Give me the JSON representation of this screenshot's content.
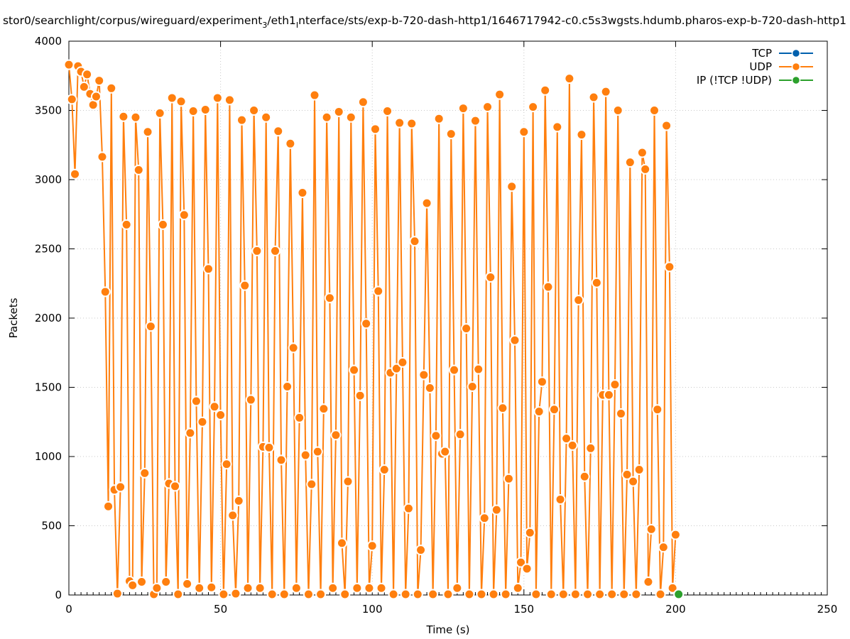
{
  "chart_data": {
    "type": "line",
    "title_parts": [
      "stor0/searchlight/corpus/wireguard/experiment",
      "3",
      "/eth1",
      "I",
      "nterface/sts/exp-b-720-dash-http1/1646717942-c0.c5s3wgsts.hdumb.pharos-exp-b-720-dash-http1"
    ],
    "xlabel": "Time (s)",
    "ylabel": "Packets",
    "xlim": [
      0,
      250
    ],
    "ylim": [
      0,
      4000
    ],
    "x_ticks": [
      0,
      50,
      100,
      150,
      200,
      250
    ],
    "y_ticks": [
      0,
      500,
      1000,
      1500,
      2000,
      2500,
      3000,
      3500,
      4000
    ],
    "grid": true,
    "legend_position": "top-right",
    "series": [
      {
        "name": "TCP",
        "color": "#0060ad",
        "x": [],
        "values": []
      },
      {
        "name": "UDP",
        "color": "#ff7f0e",
        "x": [
          0,
          1,
          2,
          3,
          4,
          5,
          6,
          7,
          8,
          9,
          10,
          11,
          12,
          13,
          14,
          15,
          16,
          17,
          18,
          19,
          20,
          21,
          22,
          23,
          24,
          25,
          26,
          27,
          28,
          29,
          30,
          31,
          32,
          33,
          34,
          35,
          36,
          37,
          38,
          39,
          40,
          41,
          42,
          43,
          44,
          45,
          46,
          47,
          48,
          49,
          50,
          51,
          52,
          53,
          54,
          55,
          56,
          57,
          58,
          59,
          60,
          61,
          62,
          63,
          64,
          65,
          66,
          67,
          68,
          69,
          70,
          71,
          72,
          73,
          74,
          75,
          76,
          77,
          78,
          79,
          80,
          81,
          82,
          83,
          84,
          85,
          86,
          87,
          88,
          89,
          90,
          91,
          92,
          93,
          94,
          95,
          96,
          97,
          98,
          99,
          100,
          101,
          102,
          103,
          104,
          105,
          106,
          107,
          108,
          109,
          110,
          111,
          112,
          113,
          114,
          115,
          116,
          117,
          118,
          119,
          120,
          121,
          122,
          123,
          124,
          125,
          126,
          127,
          128,
          129,
          130,
          131,
          132,
          133,
          134,
          135,
          136,
          137,
          138,
          139,
          140,
          141,
          142,
          143,
          144,
          145,
          146,
          147,
          148,
          149,
          150,
          151,
          152,
          153,
          154,
          155,
          156,
          157,
          158,
          159,
          160,
          161,
          162,
          163,
          164,
          165,
          166,
          167,
          168,
          169,
          170,
          171,
          172,
          173,
          174,
          175,
          176,
          177,
          178,
          179,
          180,
          181,
          182,
          183,
          184,
          185,
          186,
          187,
          188,
          189,
          190,
          191,
          192,
          193,
          194,
          195,
          196,
          197,
          198,
          199,
          200
        ],
        "values": [
          3830,
          3580,
          3040,
          3820,
          3780,
          3670,
          3760,
          3620,
          3540,
          3600,
          3715,
          3165,
          2190,
          640,
          3660,
          760,
          10,
          780,
          3455,
          2675,
          100,
          70,
          3450,
          3070,
          95,
          880,
          3345,
          1940,
          5,
          50,
          3480,
          2675,
          95,
          805,
          3590,
          785,
          5,
          3565,
          2745,
          80,
          1170,
          3495,
          1400,
          50,
          1250,
          3505,
          2355,
          55,
          1360,
          3590,
          1300,
          5,
          945,
          3575,
          575,
          10,
          680,
          3430,
          2235,
          50,
          1410,
          3500,
          2485,
          50,
          1070,
          3450,
          1065,
          5,
          2485,
          3350,
          975,
          5,
          1505,
          3260,
          1785,
          50,
          1280,
          2905,
          1010,
          5,
          800,
          3610,
          1035,
          5,
          1345,
          3450,
          2145,
          50,
          1155,
          3490,
          375,
          5,
          820,
          3450,
          1625,
          50,
          1440,
          3560,
          1960,
          50,
          355,
          3365,
          2195,
          50,
          905,
          3495,
          1605,
          5,
          1635,
          3410,
          1680,
          5,
          625,
          3405,
          2555,
          5,
          325,
          1590,
          2830,
          1495,
          5,
          1150,
          3440,
          1020,
          1035,
          5,
          3330,
          1625,
          50,
          1160,
          3515,
          1925,
          5,
          1505,
          3425,
          1630,
          5,
          555,
          3525,
          2295,
          5,
          615,
          3615,
          1350,
          5,
          840,
          2950,
          1840,
          50,
          235,
          3345,
          190,
          450,
          3525,
          5,
          1325,
          1540,
          3645,
          2225,
          5,
          1340,
          3380,
          690,
          5,
          1130,
          3730,
          1080,
          5,
          2130,
          3325,
          855,
          5,
          1060,
          3595,
          2255,
          5,
          1445,
          3635,
          1445,
          5,
          1520,
          3500,
          1310,
          5,
          870,
          3125,
          820,
          5,
          905,
          3195,
          3075,
          95,
          475,
          3500,
          1340,
          5,
          345,
          3390,
          2370,
          50,
          435
        ]
      },
      {
        "name": "IP (!TCP  !UDP)",
        "color": "#2ca02c",
        "x": [
          201
        ],
        "values": [
          5
        ]
      }
    ]
  }
}
